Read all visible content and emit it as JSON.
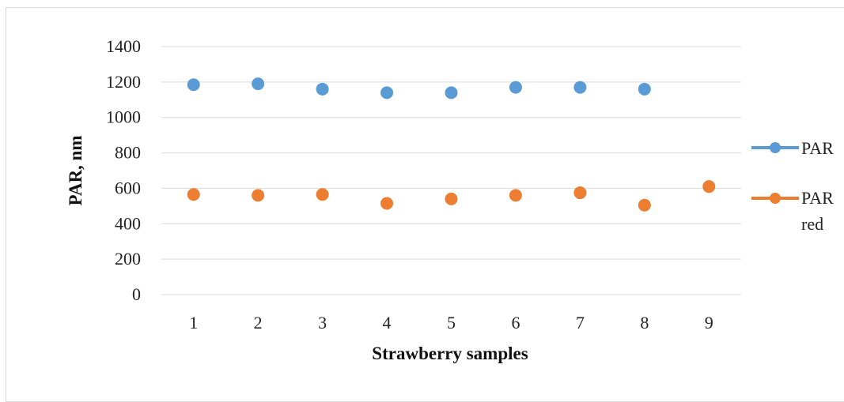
{
  "chart_data": {
    "type": "scatter",
    "title": "",
    "xlabel": "Strawberry samples",
    "ylabel": "PAR, nm",
    "x_ticks": [
      "1",
      "2",
      "3",
      "4",
      "5",
      "6",
      "7",
      "8",
      "9"
    ],
    "y_ticks": [
      "0",
      "200",
      "400",
      "600",
      "800",
      "1000",
      "1200",
      "1400"
    ],
    "ylim": [
      0,
      1400
    ],
    "xlim": [
      0.5,
      9.5
    ],
    "grid": "horizontal",
    "legend_position": "right",
    "series": [
      {
        "name": "PAR",
        "color": "#5b9bd5",
        "x": [
          1,
          2,
          3,
          4,
          5,
          6,
          7,
          8
        ],
        "values": [
          1185,
          1190,
          1160,
          1140,
          1140,
          1170,
          1170,
          1160
        ]
      },
      {
        "name": "PAR red",
        "legend_lines": [
          "PAR",
          "red"
        ],
        "color": "#ed7d31",
        "x": [
          1,
          2,
          3,
          4,
          5,
          6,
          7,
          8,
          9
        ],
        "values": [
          565,
          560,
          565,
          515,
          540,
          560,
          575,
          505,
          610
        ]
      }
    ]
  }
}
